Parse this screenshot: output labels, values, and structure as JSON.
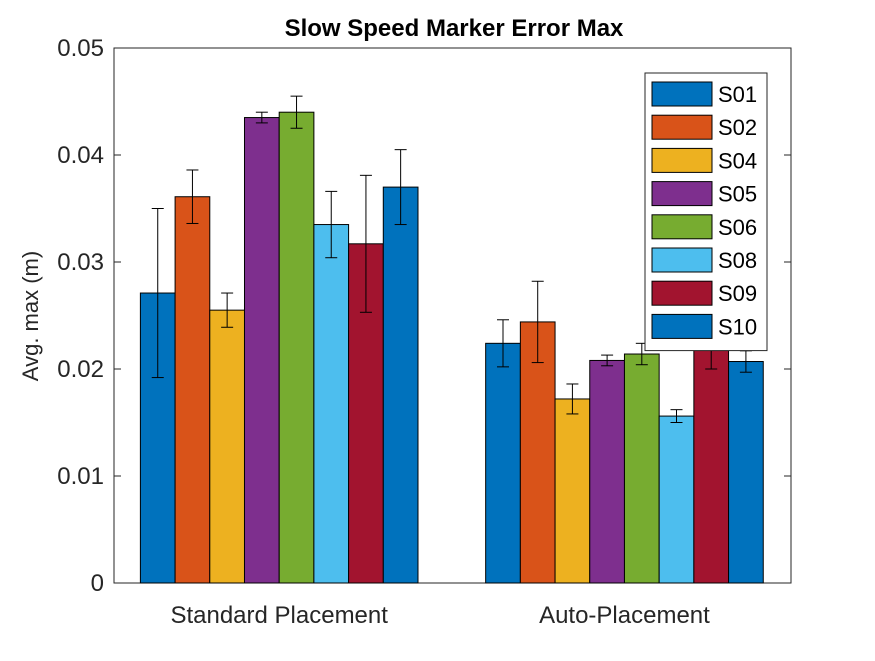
{
  "chart_data": {
    "type": "bar",
    "title": "Slow Speed Marker Error Max",
    "xlabel": "",
    "ylabel": "Avg. max (m)",
    "ylim": [
      0,
      0.05
    ],
    "yticks": [
      "0",
      "0.01",
      "0.02",
      "0.03",
      "0.04",
      "0.05"
    ],
    "grid": false,
    "legend_placement": "top-right",
    "categories": [
      "Standard Placement",
      "Auto-Placement"
    ],
    "series": [
      {
        "name": "S01",
        "color": "#0072BD",
        "values": [
          0.0271,
          0.0224
        ],
        "err": [
          0.0079,
          0.0022
        ]
      },
      {
        "name": "S02",
        "color": "#D95319",
        "values": [
          0.0361,
          0.0244
        ],
        "err": [
          0.0025,
          0.0038
        ]
      },
      {
        "name": "S04",
        "color": "#EDB120",
        "values": [
          0.0255,
          0.0172
        ],
        "err": [
          0.0016,
          0.0014
        ]
      },
      {
        "name": "S05",
        "color": "#7E2F8E",
        "values": [
          0.0435,
          0.0208
        ],
        "err": [
          0.0005,
          0.0005
        ]
      },
      {
        "name": "S06",
        "color": "#77AC30",
        "values": [
          0.044,
          0.0214
        ],
        "err": [
          0.0015,
          0.001
        ]
      },
      {
        "name": "S08",
        "color": "#4DBEEE",
        "values": [
          0.0335,
          0.0156
        ],
        "err": [
          0.0031,
          0.0006
        ]
      },
      {
        "name": "S09",
        "color": "#A2142F",
        "values": [
          0.0317,
          0.023
        ],
        "err": [
          0.0064,
          0.003
        ]
      },
      {
        "name": "S10",
        "color": "#0072BD",
        "values": [
          0.037,
          0.0207
        ],
        "err": [
          0.0035,
          0.001
        ]
      }
    ]
  }
}
